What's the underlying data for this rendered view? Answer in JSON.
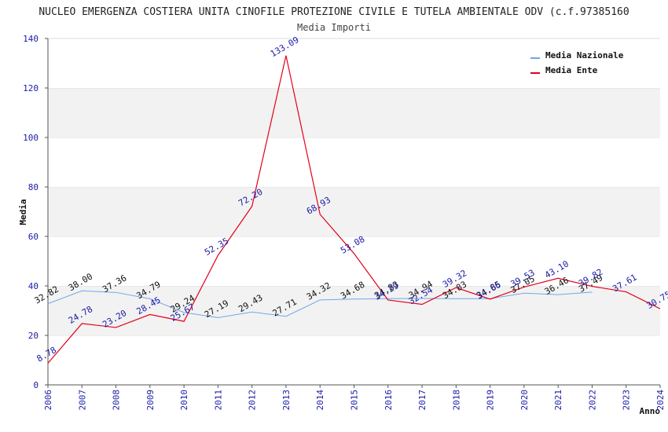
{
  "chart_data": {
    "type": "line",
    "title": "NUCLEO EMERGENZA COSTIERA UNITA CINOFILE PROTEZIONE CIVILE E TUTELA AMBIENTALE ODV (c.f.97385160",
    "subtitle": "Media Importi",
    "xlabel": "Anno",
    "ylabel": "Media",
    "ylim": [
      0,
      140
    ],
    "yticks": [
      0,
      20,
      40,
      60,
      80,
      100,
      120,
      140
    ],
    "x": [
      2006,
      2007,
      2008,
      2009,
      2010,
      2011,
      2012,
      2013,
      2014,
      2015,
      2016,
      2017,
      2018,
      2019,
      2020,
      2021,
      2022,
      2023,
      2024
    ],
    "legend_position": "top-right",
    "grid": "alternating horizontal bands",
    "series": [
      {
        "name": "Media Nazionale",
        "color": "#6fa8e8",
        "x": [
          2006,
          2007,
          2008,
          2009,
          2010,
          2011,
          2012,
          2013,
          2014,
          2015,
          2016,
          2017,
          2018,
          2019,
          2020,
          2021,
          2022
        ],
        "values": [
          32.82,
          38.0,
          37.36,
          34.79,
          29.24,
          27.19,
          29.43,
          27.71,
          34.32,
          34.68,
          34.83,
          34.94,
          34.83,
          34.85,
          37.05,
          36.46,
          37.49
        ],
        "labels": [
          "32.82",
          "38.00",
          "37.36",
          "34.79",
          "29.24",
          "27.19",
          "29.43",
          "27.71",
          "34.32",
          "34.68",
          "34.83",
          "34.94",
          "34.83",
          "34.85",
          "37.05",
          "36.46",
          "37.49"
        ]
      },
      {
        "name": "Media Ente",
        "color": "#e3001b",
        "x": [
          2006,
          2007,
          2008,
          2009,
          2010,
          2011,
          2012,
          2013,
          2014,
          2015,
          2016,
          2017,
          2018,
          2019,
          2020,
          2021,
          2022,
          2023,
          2024
        ],
        "values": [
          8.78,
          24.78,
          23.2,
          28.45,
          25.67,
          52.35,
          72.2,
          133.09,
          68.93,
          53.08,
          34.29,
          32.54,
          39.32,
          34.66,
          39.53,
          43.1,
          39.82,
          37.61,
          30.75
        ],
        "labels": [
          "8.78",
          "24.78",
          "23.20",
          "28.45",
          "25.67",
          "52.35",
          "72.20",
          "133.09",
          "68.93",
          "53.08",
          "34.29",
          "32.54",
          "39.32",
          "34.66",
          "39.53",
          "43.10",
          "39.82",
          "37.61",
          "30.75"
        ]
      }
    ]
  }
}
